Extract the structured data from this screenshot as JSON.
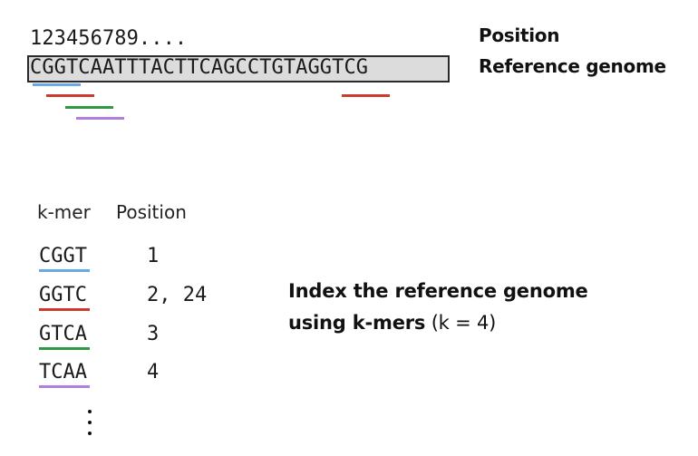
{
  "genome": {
    "position_numbers": "123456789....",
    "sequence": "CGGTCAATTTACTTCAGCCTGTAGGTCG",
    "position_label": "Position",
    "reference_label": "Reference genome"
  },
  "kmer_table": {
    "header_kmer": "k-mer",
    "header_position": "Position",
    "rows": [
      {
        "kmer": "CGGT",
        "position": "1",
        "color": "#6aa9e9"
      },
      {
        "kmer": "GGTC",
        "position": "2, 24",
        "color": "#cc3b2e"
      },
      {
        "kmer": "GTCA",
        "position": "3",
        "color": "#2f9a45"
      },
      {
        "kmer": "TCAA",
        "position": "4",
        "color": "#b27fe0"
      }
    ]
  },
  "caption": {
    "line1": "Index the reference genome",
    "line2_bold": "using k-mers",
    "line2_normal": " (k = 4)"
  }
}
